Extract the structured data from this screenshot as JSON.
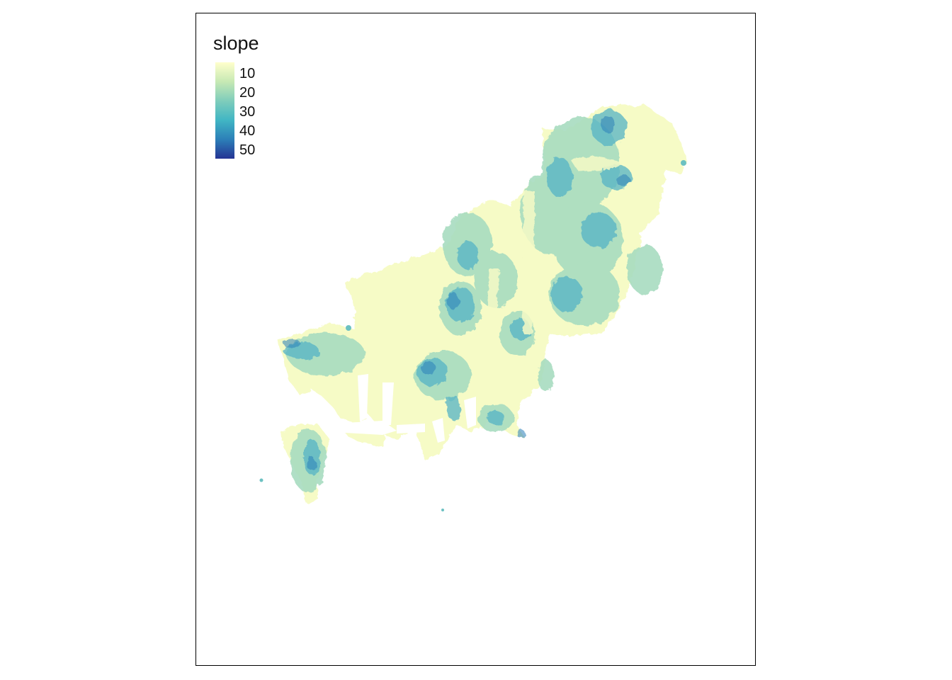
{
  "legend": {
    "title": "slope",
    "labels": [
      "10",
      "20",
      "30",
      "40",
      "50"
    ],
    "colors": [
      "#ffffcc",
      "#c7e9b4",
      "#7fcdbb",
      "#41b6c4",
      "#2c7fb8",
      "#253494"
    ]
  }
}
